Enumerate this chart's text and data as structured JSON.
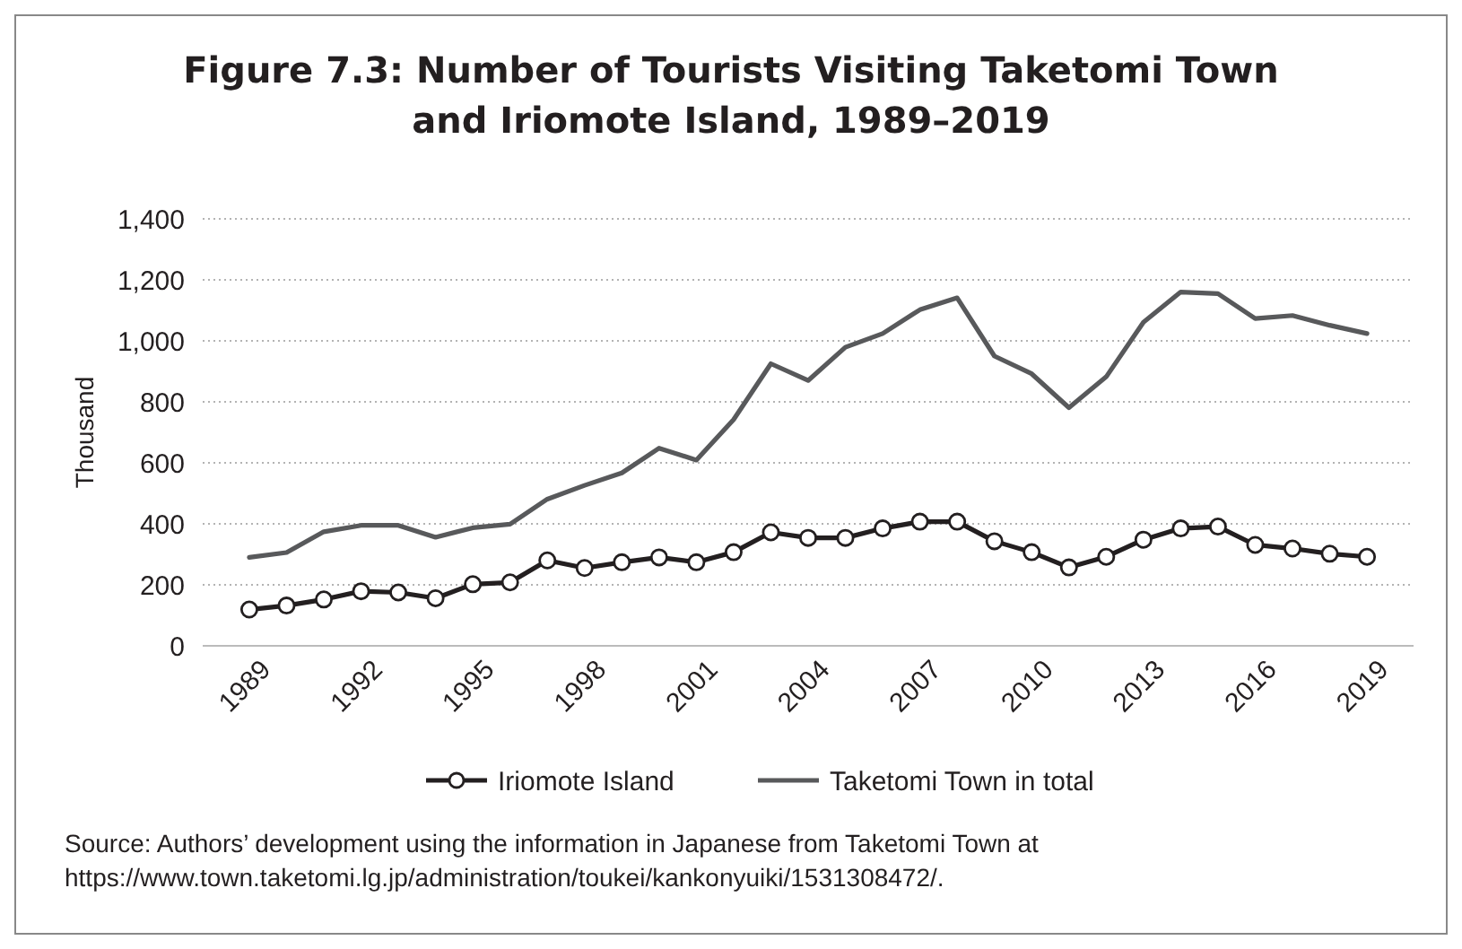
{
  "chart_data": {
    "type": "line",
    "title": "Figure 7.3: Number of Tourists Visiting Taketomi Town and Iriomote Island, 1989–2019",
    "ylabel": "Thousand",
    "x": [
      1989,
      1990,
      1991,
      1992,
      1993,
      1994,
      1995,
      1996,
      1997,
      1998,
      1999,
      2000,
      2001,
      2002,
      2003,
      2004,
      2005,
      2006,
      2007,
      2008,
      2009,
      2010,
      2011,
      2012,
      2013,
      2014,
      2015,
      2016,
      2017,
      2018,
      2019
    ],
    "series": [
      {
        "name": "Iriomote Island",
        "color": "#231f20",
        "marker": "circle",
        "values": [
          119,
          132,
          152,
          179,
          175,
          156,
          202,
          208,
          280,
          255,
          274,
          290,
          274,
          307,
          372,
          354,
          354,
          385,
          407,
          407,
          343,
          307,
          257,
          292,
          348,
          385,
          391,
          331,
          319,
          302,
          292
        ]
      },
      {
        "name": "Taketomi Town in total",
        "color": "#58595b",
        "marker": "none",
        "values": [
          290,
          306,
          374,
          395,
          395,
          356,
          387,
          399,
          481,
          526,
          567,
          648,
          609,
          742,
          925,
          870,
          979,
          1024,
          1102,
          1141,
          950,
          892,
          781,
          882,
          1061,
          1160,
          1155,
          1073,
          1083,
          1051,
          1024
        ]
      }
    ],
    "xlim": [
      1987.75,
      2020.25
    ],
    "xticks": [
      1989,
      1992,
      1995,
      1998,
      2001,
      2004,
      2007,
      2010,
      2013,
      2016,
      2019
    ],
    "ylim": [
      0,
      1400
    ],
    "yticks": [
      {
        "value": 0,
        "label": "0"
      },
      {
        "value": 200,
        "label": "200"
      },
      {
        "value": 400,
        "label": "400"
      },
      {
        "value": 600,
        "label": "600"
      },
      {
        "value": 800,
        "label": "800"
      },
      {
        "value": 1000,
        "label": "1,000"
      },
      {
        "value": 1200,
        "label": "1,200"
      },
      {
        "value": 1400,
        "label": "1,400"
      }
    ],
    "grid": "y",
    "legend": "bottom",
    "line_style": "solid",
    "annotations": [
      "Source: Authors’ development using the information in Japanese from Taketomi Town at https://www.town.taketomi.lg.jp/administration/toukei/kankonyuiki/1531308472/."
    ]
  }
}
